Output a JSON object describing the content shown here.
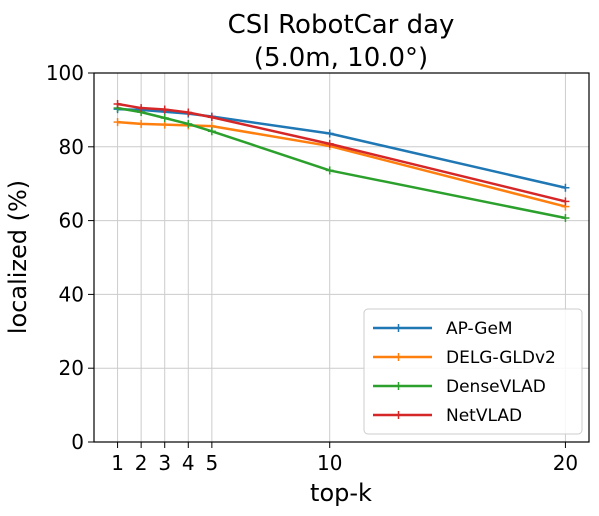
{
  "chart_data": {
    "type": "line",
    "title_lines": [
      "CSI RobotCar day",
      "(5.0m, 10.0°)"
    ],
    "xlabel": "top-k",
    "ylabel": "localized (%)",
    "x": [
      1,
      2,
      3,
      4,
      5,
      10,
      20
    ],
    "xticks": [
      1,
      2,
      3,
      4,
      5,
      10,
      20
    ],
    "yticks": [
      0,
      20,
      40,
      60,
      80,
      100
    ],
    "xlim": [
      0,
      21
    ],
    "ylim": [
      0,
      100
    ],
    "grid": true,
    "legend_position": "lower-right",
    "series": [
      {
        "name": "AP-GeM",
        "color": "#1f77b4",
        "values": [
          90.2,
          90.0,
          89.5,
          89.0,
          88.2,
          83.6,
          68.9
        ]
      },
      {
        "name": "DELG-GLDv2",
        "color": "#ff7f0e",
        "values": [
          86.7,
          86.2,
          86.0,
          85.8,
          85.6,
          80.2,
          63.8
        ]
      },
      {
        "name": "DenseVLAD",
        "color": "#2ca02c",
        "values": [
          90.5,
          89.4,
          87.8,
          86.2,
          84.2,
          73.6,
          60.7
        ]
      },
      {
        "name": "NetVLAD",
        "color": "#d62728",
        "values": [
          91.6,
          90.5,
          90.1,
          89.3,
          88.0,
          80.8,
          65.2
        ]
      }
    ]
  }
}
